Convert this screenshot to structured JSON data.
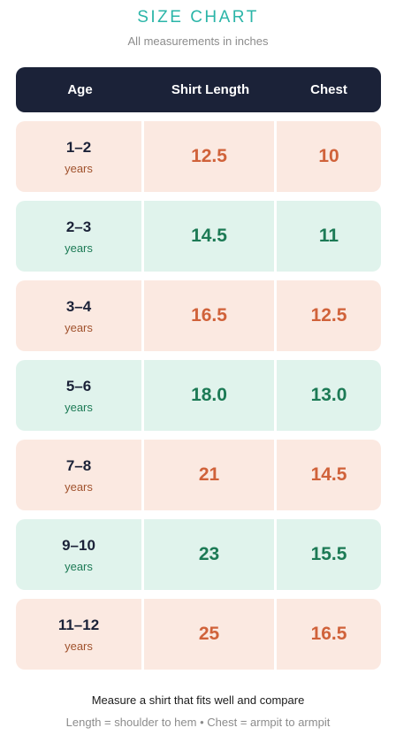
{
  "header": {
    "title": "SIZE CHART",
    "subtitle": "All measurements in inches"
  },
  "table": {
    "columns": [
      "Age",
      "Shirt Length",
      "Chest"
    ],
    "rows": [
      [
        "1–2",
        "years",
        "12.5",
        "10"
      ],
      [
        "2–3",
        "years",
        "14.5",
        "11"
      ],
      [
        "3–4",
        "years",
        "16.5",
        "12.5"
      ],
      [
        "5–6",
        "years",
        "18.0",
        "13.0"
      ],
      [
        "7–8",
        "years",
        "21",
        "14.5"
      ],
      [
        "9–10",
        "years",
        "23",
        "15.5"
      ],
      [
        "11–12",
        "years",
        "25",
        "16.5"
      ]
    ]
  },
  "footer": {
    "note": "Measure a shirt that fits well and compare",
    "legend": "Length = shoulder to hem • Chest = armpit to armpit"
  }
}
